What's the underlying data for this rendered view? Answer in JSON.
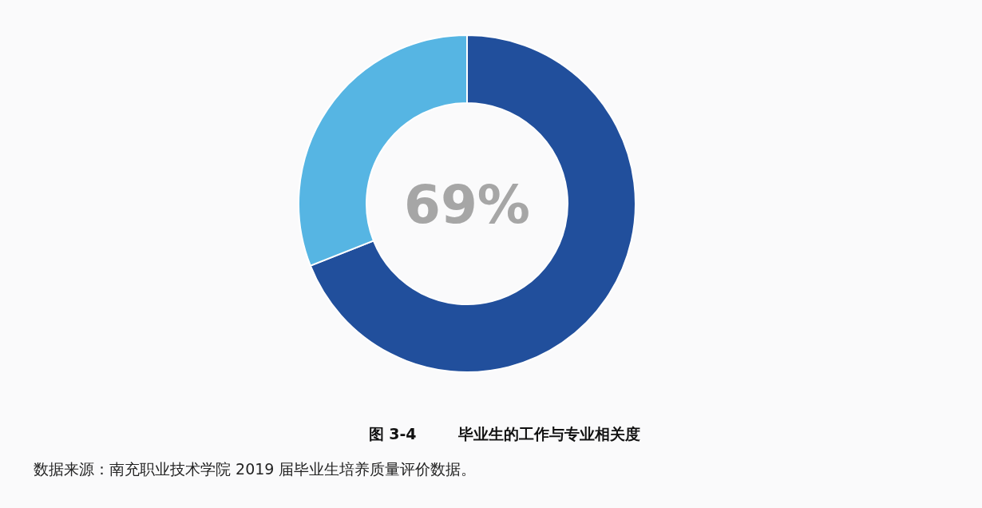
{
  "chart_data": {
    "type": "donut",
    "title": "图 3-4        毕业生的工作与专业相关度",
    "categories": [
      null,
      null
    ],
    "values": [
      69,
      31
    ],
    "colors": [
      "#214f9c",
      "#56b5e3"
    ],
    "value_labels": [
      "69%",
      null
    ],
    "annotations": [
      "数据来源：南充职业技术学院 2019 届毕业生培养质量评价数据。"
    ]
  }
}
